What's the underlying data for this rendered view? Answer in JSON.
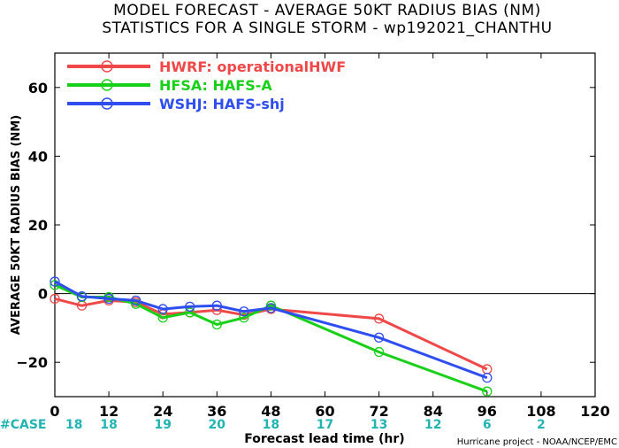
{
  "title_line1": "MODEL FORECAST - AVERAGE 50KT RADIUS BIAS (NM)",
  "title_line2": "STATISTICS FOR A SINGLE STORM - wp192021_CHANTHU",
  "credit": "Hurricane project - NOAA/NCEP/EMC",
  "case_label": "#CASE",
  "case_color": "#22b3b3",
  "chart_data": {
    "type": "line",
    "ylabel": "AVERAGE 50KT RADIUS BIAS (NM)",
    "xlabel": "Forecast lead time (hr)",
    "xlim": [
      0,
      120
    ],
    "ylim": [
      -30,
      70
    ],
    "x_ticks": [
      0,
      12,
      24,
      36,
      48,
      60,
      72,
      84,
      96,
      108,
      120
    ],
    "y_ticks": [
      -20,
      0,
      20,
      40,
      60
    ],
    "zero_line": true,
    "legend_position": "top-left",
    "cases": [
      {
        "x": 0,
        "n": "18"
      },
      {
        "x": 12,
        "n": "18"
      },
      {
        "x": 24,
        "n": "19"
      },
      {
        "x": 36,
        "n": "20"
      },
      {
        "x": 48,
        "n": "18"
      },
      {
        "x": 60,
        "n": "17"
      },
      {
        "x": 72,
        "n": "13"
      },
      {
        "x": 84,
        "n": "12"
      },
      {
        "x": 96,
        "n": "6"
      },
      {
        "x": 108,
        "n": "2"
      }
    ],
    "series": [
      {
        "name": "HWRF: operationalHWF",
        "color": "#f04848",
        "x": [
          0,
          6,
          12,
          18,
          24,
          30,
          36,
          42,
          48,
          72,
          96
        ],
        "values": [
          -1.5,
          -3.5,
          -2,
          -2.5,
          -6,
          -5.5,
          -4.8,
          -6.2,
          -4.5,
          -7.3,
          -22
        ]
      },
      {
        "name": "HFSA: HAFS-A",
        "color": "#18d018",
        "x": [
          0,
          6,
          12,
          18,
          24,
          30,
          36,
          42,
          48,
          72,
          96
        ],
        "values": [
          2.5,
          -1,
          -1,
          -3,
          -7,
          -5.5,
          -9,
          -7,
          -3.5,
          -17,
          -28.5
        ]
      },
      {
        "name": "WSHJ: HAFS-shj",
        "color": "#2e4ef0",
        "x": [
          0,
          6,
          12,
          18,
          24,
          30,
          36,
          42,
          48,
          72,
          96
        ],
        "values": [
          3.5,
          -0.8,
          -1.5,
          -2,
          -4.5,
          -3.8,
          -3.5,
          -5.2,
          -4.2,
          -12.8,
          -24.5
        ]
      }
    ]
  }
}
